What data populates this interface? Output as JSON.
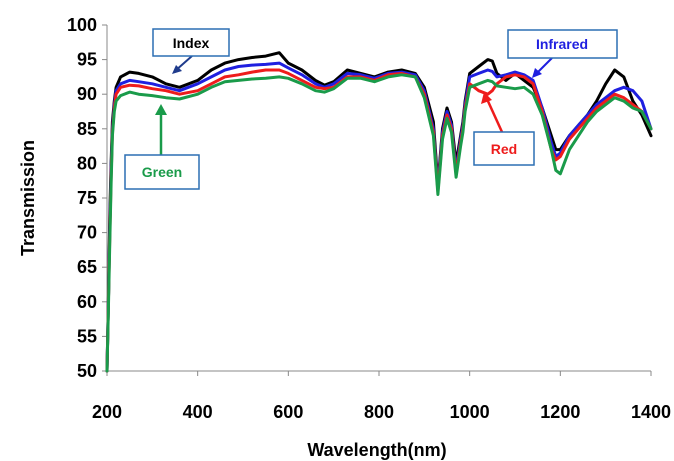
{
  "chart_data": {
    "type": "line",
    "xlabel": "Wavelength(nm)",
    "ylabel": "Transmission",
    "xlim": [
      200,
      1400
    ],
    "ylim": [
      50,
      100
    ],
    "xticks": [
      "200",
      "400",
      "600",
      "800",
      "1000",
      "1200",
      "1400"
    ],
    "yticks": [
      "50",
      "55",
      "60",
      "65",
      "70",
      "75",
      "80",
      "85",
      "90",
      "95",
      "100"
    ],
    "grid": false,
    "series": [
      {
        "name": "Index",
        "color": "#000000",
        "x": [
          200,
          203,
          206,
          209,
          212,
          216,
          220,
          230,
          250,
          270,
          300,
          330,
          360,
          400,
          430,
          460,
          490,
          520,
          550,
          580,
          600,
          630,
          660,
          680,
          700,
          730,
          760,
          790,
          820,
          850,
          880,
          900,
          920,
          930,
          940,
          950,
          960,
          970,
          980,
          985,
          990,
          1000,
          1020,
          1040,
          1050,
          1060,
          1080,
          1100,
          1120,
          1140,
          1160,
          1180,
          1190,
          1200,
          1220,
          1240,
          1260,
          1280,
          1300,
          1320,
          1340,
          1360,
          1380,
          1400
        ],
        "y": [
          50,
          60,
          72,
          80,
          86,
          89,
          91,
          92.5,
          93.2,
          93,
          92.5,
          91.5,
          91,
          92,
          93.5,
          94.5,
          95,
          95.3,
          95.5,
          96,
          94.5,
          93.5,
          92,
          91.3,
          91.8,
          93.5,
          93,
          92.5,
          93.2,
          93.5,
          93,
          91,
          86,
          77,
          85,
          88,
          86,
          80,
          84,
          86,
          89,
          93,
          94,
          95,
          94.8,
          93,
          92,
          93,
          92,
          91,
          88,
          84,
          82,
          82,
          84,
          85.5,
          87,
          89,
          91.5,
          93.5,
          92.5,
          89,
          87,
          84
        ]
      },
      {
        "name": "Infrared",
        "color": "#1f1fe0",
        "x": [
          200,
          203,
          206,
          209,
          212,
          216,
          220,
          230,
          250,
          270,
          300,
          330,
          360,
          400,
          430,
          460,
          490,
          520,
          550,
          580,
          600,
          630,
          660,
          680,
          700,
          730,
          760,
          790,
          820,
          850,
          880,
          900,
          920,
          930,
          940,
          950,
          960,
          970,
          980,
          985,
          990,
          1000,
          1020,
          1040,
          1050,
          1060,
          1080,
          1100,
          1120,
          1140,
          1160,
          1180,
          1190,
          1200,
          1220,
          1240,
          1260,
          1280,
          1300,
          1320,
          1340,
          1360,
          1380,
          1400
        ],
        "y": [
          50,
          60,
          70,
          79,
          85,
          88.5,
          90.5,
          91.5,
          92,
          91.8,
          91.5,
          91,
          90.5,
          91.5,
          92.5,
          93.5,
          94,
          94.2,
          94.3,
          94.5,
          93.8,
          92.8,
          91.5,
          91,
          91.5,
          93,
          92.8,
          92.3,
          93,
          93.2,
          92.8,
          90.5,
          85,
          76.5,
          84.5,
          87.5,
          85.5,
          79,
          83.5,
          85.5,
          88.5,
          92.5,
          93,
          93.5,
          93.3,
          92.5,
          92.8,
          93.2,
          92.8,
          92,
          88,
          83,
          81,
          81.5,
          84,
          85.5,
          87,
          88.5,
          89.5,
          90.5,
          91,
          90.5,
          89,
          85
        ]
      },
      {
        "name": "Red",
        "color": "#ee1c1c",
        "x": [
          200,
          203,
          206,
          209,
          212,
          216,
          220,
          230,
          250,
          270,
          300,
          330,
          360,
          400,
          430,
          460,
          490,
          520,
          550,
          580,
          600,
          630,
          660,
          680,
          700,
          730,
          760,
          790,
          820,
          850,
          880,
          900,
          920,
          930,
          940,
          950,
          960,
          970,
          980,
          985,
          990,
          1000,
          1020,
          1040,
          1050,
          1060,
          1080,
          1100,
          1120,
          1140,
          1160,
          1180,
          1190,
          1200,
          1220,
          1240,
          1260,
          1280,
          1300,
          1320,
          1340,
          1360,
          1380,
          1400
        ],
        "y": [
          50,
          60,
          69,
          78,
          84.5,
          88,
          90,
          91,
          91.3,
          91.2,
          90.8,
          90.5,
          90,
          90.5,
          91.5,
          92.5,
          92.8,
          93.2,
          93.5,
          93.5,
          93,
          92,
          91,
          90.8,
          91,
          92.5,
          92.5,
          92,
          92.8,
          93,
          92.5,
          90,
          84.5,
          76,
          84,
          87,
          85,
          78.5,
          83,
          85,
          88,
          91.5,
          90.5,
          90,
          90.5,
          91.5,
          92.5,
          92.8,
          92.5,
          91.5,
          87.5,
          82,
          80.5,
          81,
          83.5,
          85,
          86.5,
          88,
          89,
          90,
          89.5,
          88.5,
          87.5,
          85
        ]
      },
      {
        "name": "Green",
        "color": "#1a9b4a",
        "x": [
          200,
          203,
          206,
          209,
          212,
          216,
          220,
          230,
          250,
          270,
          300,
          330,
          360,
          400,
          430,
          460,
          490,
          520,
          550,
          580,
          600,
          630,
          660,
          680,
          700,
          730,
          760,
          790,
          820,
          850,
          880,
          900,
          920,
          930,
          940,
          950,
          960,
          970,
          980,
          985,
          990,
          1000,
          1020,
          1040,
          1050,
          1060,
          1080,
          1100,
          1120,
          1140,
          1160,
          1180,
          1190,
          1200,
          1220,
          1240,
          1260,
          1280,
          1300,
          1320,
          1340,
          1360,
          1380,
          1400
        ],
        "y": [
          50,
          59,
          68,
          77,
          84,
          87.5,
          89,
          89.8,
          90.3,
          90,
          89.8,
          89.5,
          89.3,
          90,
          91,
          91.8,
          92,
          92.2,
          92.3,
          92.5,
          92.3,
          91.5,
          90.5,
          90.3,
          90.8,
          92.3,
          92.3,
          91.8,
          92.5,
          92.8,
          92.5,
          89.5,
          84,
          75.5,
          83.5,
          86.5,
          84.5,
          78,
          82.5,
          84.5,
          87.5,
          91,
          91.5,
          92,
          91.8,
          91.2,
          91,
          90.8,
          91,
          90,
          87,
          82,
          79,
          78.5,
          82,
          84,
          86,
          87.5,
          88.5,
          89.5,
          89,
          88,
          87.5,
          85
        ]
      }
    ],
    "annotations": [
      {
        "text": "Index",
        "series": "Index"
      },
      {
        "text": "Infrared",
        "series": "Infrared"
      },
      {
        "text": "Red",
        "series": "Red"
      },
      {
        "text": "Green",
        "series": "Green"
      }
    ]
  }
}
